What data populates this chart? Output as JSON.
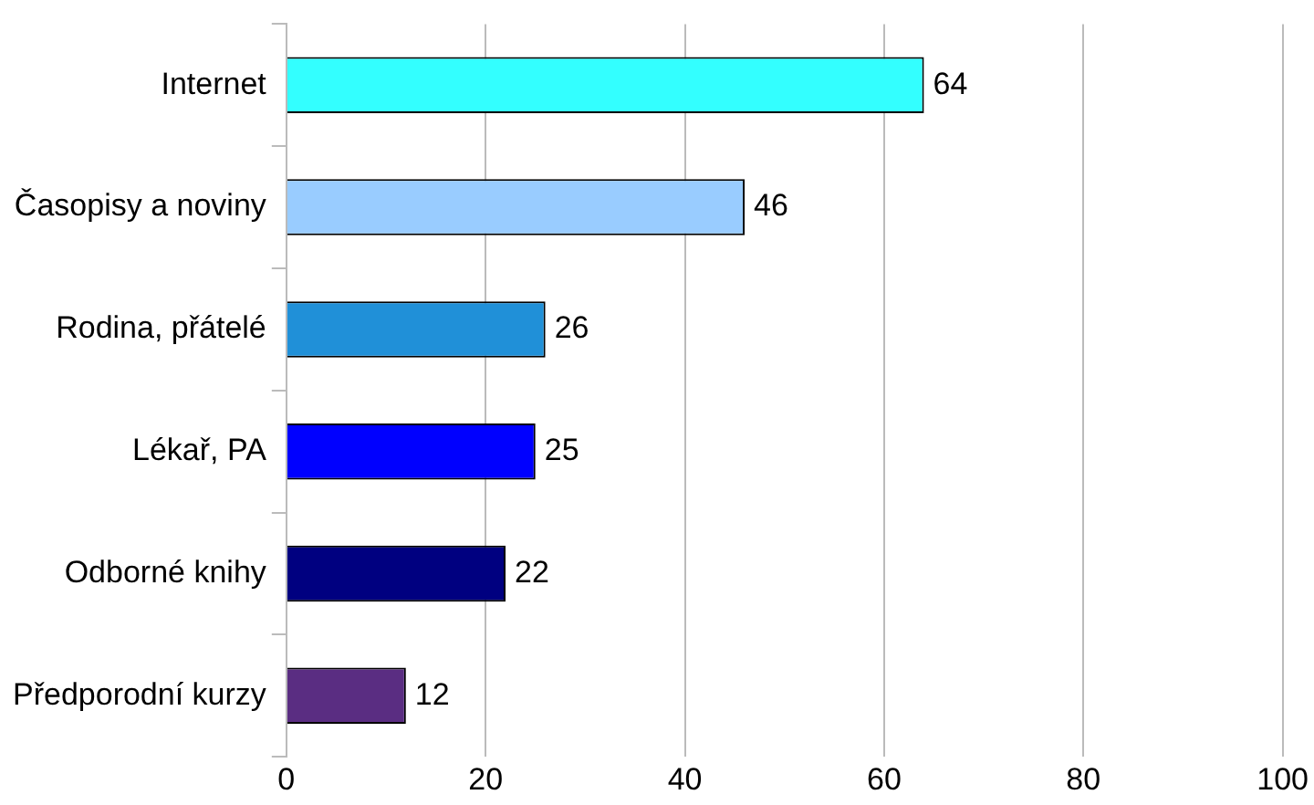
{
  "chart_data": {
    "type": "bar",
    "orientation": "horizontal",
    "categories": [
      "Internet",
      "Časopisy a noviny",
      "Rodina, přátelé",
      "Lékař, PA",
      "Odborné knihy",
      "Předporodní kurzy"
    ],
    "values": [
      64,
      46,
      26,
      25,
      22,
      12
    ],
    "colors": [
      "#33ffff",
      "#99ccff",
      "#2090d8",
      "#0000ff",
      "#000080",
      "#5a2d82"
    ],
    "xlim": [
      0,
      100
    ],
    "xticks": [
      0,
      20,
      40,
      60,
      80,
      100
    ],
    "grid": "x",
    "data_labels": true
  }
}
